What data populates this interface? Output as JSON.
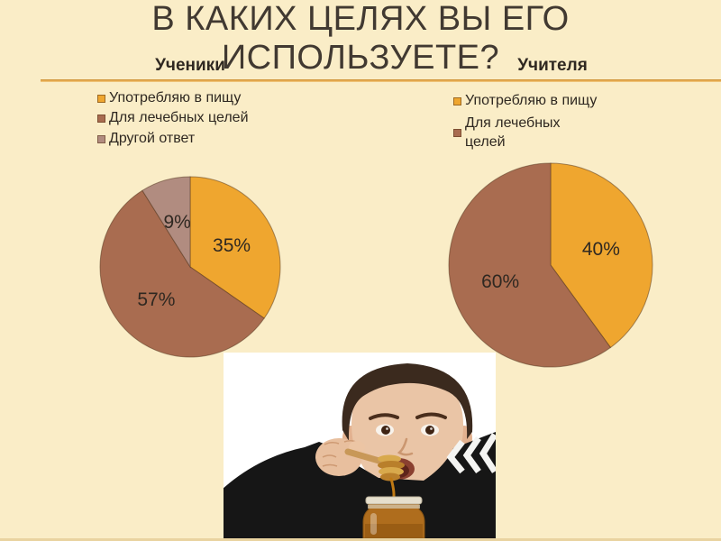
{
  "slide": {
    "title_line1": "В КАКИХ ЦЕЛЯХ ВЫ ЕГО",
    "title_line2": "ИСПОЛЬЗУЕТЕ?",
    "colors": {
      "background": "#FAEDC7",
      "title_text": "#413931",
      "rule": "#E8AC50",
      "chart_text": "#2F2821"
    }
  },
  "chart_data": [
    {
      "type": "pie",
      "title": "Ученики",
      "labels": [
        "Употребляю в пищу",
        "Для лечебных целей",
        "Другой ответ"
      ],
      "values": [
        35,
        57,
        9
      ],
      "data_labels": [
        "35%",
        "57%",
        "9%"
      ],
      "colors": [
        "#EFA62F",
        "#A96C50",
        "#B18C80"
      ],
      "legend_position": "top-left",
      "start_angle_deg": 0,
      "direction": "clockwise"
    },
    {
      "type": "pie",
      "title": "Учителя",
      "labels": [
        "Употребляю в пищу",
        "Для лечебных\nцелей"
      ],
      "values": [
        40,
        60
      ],
      "data_labels": [
        "40%",
        "60%"
      ],
      "colors": [
        "#EFA62F",
        "#A96C50"
      ],
      "legend_position": "top-left",
      "start_angle_deg": 0,
      "direction": "clockwise"
    }
  ],
  "photo": {
    "alt": "Мальчик ест мёд деревянной ложкой из банки"
  }
}
